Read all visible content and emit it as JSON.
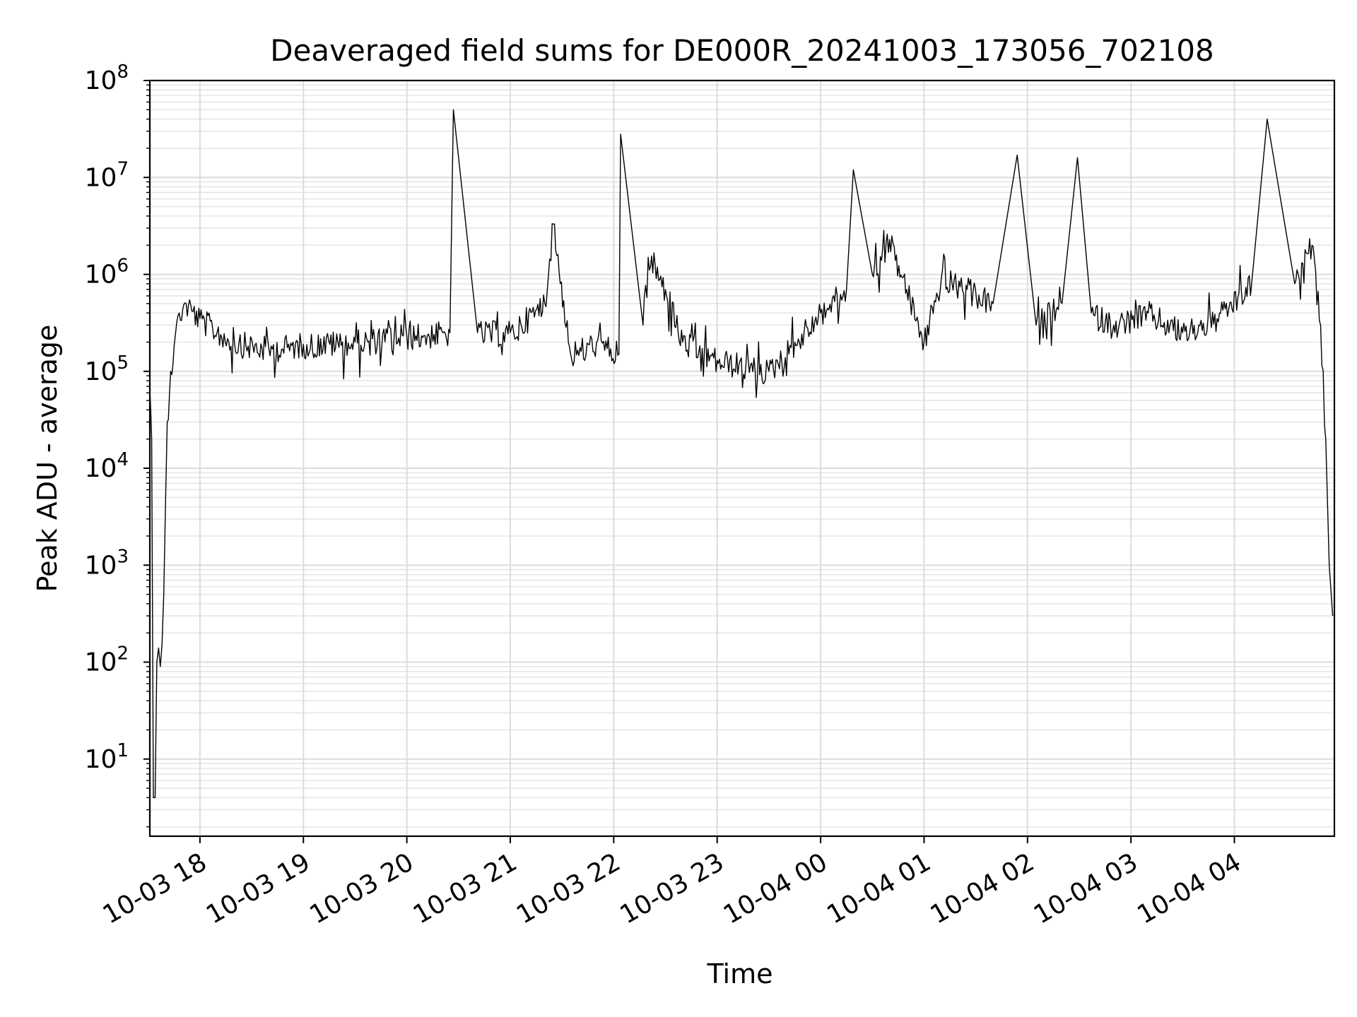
{
  "chart_data": {
    "type": "line",
    "title": "Deaveraged field sums for DE000R_20241003_173056_702108",
    "xlabel": "Time",
    "ylabel": "Peak ADU - average",
    "yscale": "log",
    "ylim": [
      1.6,
      100000000
    ],
    "xlim": [
      "2024-10-03 17:30:56",
      "2024-10-04 04:58:00"
    ],
    "grid": "both major and minor, light gray",
    "line_color": "#000000",
    "x_ticks": [
      {
        "label": "10-03 18",
        "time": "2024-10-03 18:00"
      },
      {
        "label": "10-03 19",
        "time": "2024-10-03 19:00"
      },
      {
        "label": "10-03 20",
        "time": "2024-10-03 20:00"
      },
      {
        "label": "10-03 21",
        "time": "2024-10-03 21:00"
      },
      {
        "label": "10-03 22",
        "time": "2024-10-03 22:00"
      },
      {
        "label": "10-03 23",
        "time": "2024-10-03 23:00"
      },
      {
        "label": "10-04 00",
        "time": "2024-10-04 00:00"
      },
      {
        "label": "10-04 01",
        "time": "2024-10-04 01:00"
      },
      {
        "label": "10-04 02",
        "time": "2024-10-04 02:00"
      },
      {
        "label": "10-04 03",
        "time": "2024-10-04 03:00"
      },
      {
        "label": "10-04 04",
        "time": "2024-10-04 04:00"
      }
    ],
    "y_ticks": [
      {
        "base": "10",
        "exp": "1",
        "value": 10
      },
      {
        "base": "10",
        "exp": "2",
        "value": 100
      },
      {
        "base": "10",
        "exp": "3",
        "value": 1000
      },
      {
        "base": "10",
        "exp": "4",
        "value": 10000
      },
      {
        "base": "10",
        "exp": "5",
        "value": 100000
      },
      {
        "base": "10",
        "exp": "6",
        "value": 1000000
      },
      {
        "base": "10",
        "exp": "7",
        "value": 10000000
      },
      {
        "base": "10",
        "exp": "8",
        "value": 100000000
      }
    ],
    "series": [
      {
        "style": "thin black line, dense noisy trace",
        "points": [
          [
            "2024-10-03 17:31",
            60000
          ],
          [
            "2024-10-03 17:32",
            20000
          ],
          [
            "2024-10-03 17:33",
            4
          ],
          [
            "2024-10-03 17:34",
            4
          ],
          [
            "2024-10-03 17:35",
            100
          ],
          [
            "2024-10-03 17:36",
            140
          ],
          [
            "2024-10-03 17:37",
            90
          ],
          [
            "2024-10-03 17:38",
            150
          ],
          [
            "2024-10-03 17:39",
            500
          ],
          [
            "2024-10-03 17:40",
            4000
          ],
          [
            "2024-10-03 17:41",
            30000
          ],
          [
            "2024-10-03 17:43",
            100000
          ],
          [
            "2024-10-03 17:45",
            180000
          ],
          [
            "2024-10-03 17:48",
            400000
          ],
          [
            "2024-10-03 17:52",
            500000
          ],
          [
            "2024-10-03 18:00",
            350000
          ],
          [
            "2024-10-03 18:20",
            200000
          ],
          [
            "2024-10-03 18:40",
            170000
          ],
          [
            "2024-10-03 19:00",
            190000
          ],
          [
            "2024-10-03 19:30",
            200000
          ],
          [
            "2024-10-03 20:00",
            230000
          ],
          [
            "2024-10-03 20:25",
            250000
          ],
          [
            "2024-10-03 20:27",
            50000000
          ],
          [
            "2024-10-03 20:41",
            250000
          ],
          [
            "2024-10-03 21:00",
            250000
          ],
          [
            "2024-10-03 21:20",
            500000
          ],
          [
            "2024-10-03 21:25",
            3300000
          ],
          [
            "2024-10-03 21:35",
            150000
          ],
          [
            "2024-10-03 21:50",
            200000
          ],
          [
            "2024-10-03 22:03",
            150000
          ],
          [
            "2024-10-03 22:04",
            28000000
          ],
          [
            "2024-10-03 22:17",
            300000
          ],
          [
            "2024-10-03 22:20",
            1500000
          ],
          [
            "2024-10-03 22:30",
            700000
          ],
          [
            "2024-10-03 22:40",
            200000
          ],
          [
            "2024-10-03 23:00",
            130000
          ],
          [
            "2024-10-03 23:30",
            100000
          ],
          [
            "2024-10-03 23:45",
            200000
          ],
          [
            "2024-10-04 00:00",
            400000
          ],
          [
            "2024-10-04 00:15",
            700000
          ],
          [
            "2024-10-04 00:19",
            12000000
          ],
          [
            "2024-10-04 00:30",
            1000000
          ],
          [
            "2024-10-04 00:40",
            2300000
          ],
          [
            "2024-10-04 00:50",
            700000
          ],
          [
            "2024-10-04 01:00",
            200000
          ],
          [
            "2024-10-04 01:10",
            900000
          ],
          [
            "2024-10-04 01:25",
            700000
          ],
          [
            "2024-10-04 01:40",
            500000
          ],
          [
            "2024-10-04 01:54",
            17000000
          ],
          [
            "2024-10-04 02:05",
            300000
          ],
          [
            "2024-10-04 02:20",
            500000
          ],
          [
            "2024-10-04 02:29",
            16000000
          ],
          [
            "2024-10-04 02:37",
            400000
          ],
          [
            "2024-10-04 02:50",
            300000
          ],
          [
            "2024-10-04 03:10",
            400000
          ],
          [
            "2024-10-04 03:30",
            250000
          ],
          [
            "2024-10-04 03:50",
            350000
          ],
          [
            "2024-10-04 04:10",
            800000
          ],
          [
            "2024-10-04 04:19",
            40000000
          ],
          [
            "2024-10-04 04:35",
            800000
          ],
          [
            "2024-10-04 04:45",
            2000000
          ],
          [
            "2024-10-04 04:50",
            300000
          ],
          [
            "2024-10-04 04:53",
            20000
          ],
          [
            "2024-10-04 04:55",
            1000
          ],
          [
            "2024-10-04 04:57",
            300
          ]
        ]
      }
    ]
  }
}
